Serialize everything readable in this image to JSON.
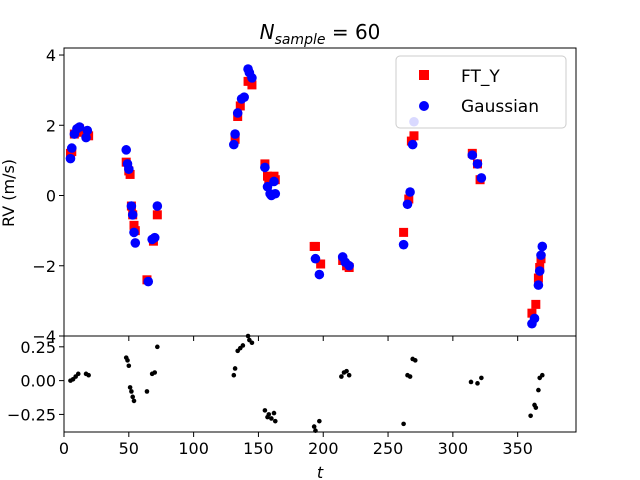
{
  "chart_data": [
    {
      "type": "scatter",
      "title_main": "N",
      "title_sub": "sample",
      "title_rest": " = 60",
      "xlabel": "",
      "ylabel": "RV (m/s)",
      "xlim": [
        0,
        395
      ],
      "ylim": [
        -4,
        4.2
      ],
      "xticks": [
        0,
        50,
        100,
        150,
        200,
        250,
        300,
        350
      ],
      "yticks": [
        -4,
        -2,
        0,
        2,
        4
      ],
      "ytick_labels": [
        "−4",
        "−2",
        "0",
        "2",
        "4"
      ],
      "legend_position": "top-right",
      "series": [
        {
          "name": "FT_Y",
          "marker": "square",
          "color": "#ff0000",
          "points": [
            [
              5,
              1.2
            ],
            [
              6,
              1.25
            ],
            [
              8,
              1.75
            ],
            [
              10,
              1.8
            ],
            [
              12,
              1.9
            ],
            [
              17,
              1.75
            ],
            [
              19,
              1.7
            ],
            [
              48,
              0.95
            ],
            [
              50,
              0.7
            ],
            [
              51,
              0.6
            ],
            [
              52,
              -0.3
            ],
            [
              53,
              -0.55
            ],
            [
              54,
              -0.85
            ],
            [
              55,
              -1.0
            ],
            [
              64,
              -2.4
            ],
            [
              69,
              -1.3
            ],
            [
              72,
              -0.55
            ],
            [
              132,
              1.6
            ],
            [
              134,
              2.25
            ],
            [
              136,
              2.55
            ],
            [
              142,
              3.25
            ],
            [
              145,
              3.15
            ],
            [
              155,
              0.9
            ],
            [
              157,
              0.55
            ],
            [
              158,
              0.45
            ],
            [
              162,
              0.55
            ],
            [
              163,
              0.45
            ],
            [
              193,
              -1.45
            ],
            [
              194,
              -1.45
            ],
            [
              198,
              -1.95
            ],
            [
              215,
              -1.85
            ],
            [
              218,
              -2.0
            ],
            [
              220,
              -2.05
            ],
            [
              262,
              -1.05
            ],
            [
              266,
              -0.1
            ],
            [
              268,
              1.55
            ],
            [
              270,
              1.7
            ],
            [
              315,
              1.2
            ],
            [
              319,
              0.9
            ],
            [
              321,
              0.45
            ],
            [
              361,
              -3.35
            ],
            [
              364,
              -3.1
            ],
            [
              366,
              -2.35
            ],
            [
              367,
              -2.05
            ],
            [
              368,
              -1.8
            ]
          ]
        },
        {
          "name": "Gaussian",
          "marker": "circle",
          "color": "#0000ff",
          "points": [
            [
              5,
              1.05
            ],
            [
              6,
              1.35
            ],
            [
              8,
              1.75
            ],
            [
              10,
              1.9
            ],
            [
              12,
              1.95
            ],
            [
              17,
              1.65
            ],
            [
              18,
              1.85
            ],
            [
              48,
              1.3
            ],
            [
              49,
              0.9
            ],
            [
              50,
              0.75
            ],
            [
              52,
              -0.3
            ],
            [
              53,
              -0.55
            ],
            [
              54,
              -1.05
            ],
            [
              55,
              -1.35
            ],
            [
              65,
              -2.45
            ],
            [
              68,
              -1.25
            ],
            [
              70,
              -1.2
            ],
            [
              72,
              -0.3
            ],
            [
              131,
              1.45
            ],
            [
              132,
              1.75
            ],
            [
              134,
              2.35
            ],
            [
              137,
              2.75
            ],
            [
              139,
              2.8
            ],
            [
              142,
              3.6
            ],
            [
              143,
              3.5
            ],
            [
              145,
              3.35
            ],
            [
              155,
              0.8
            ],
            [
              157,
              0.25
            ],
            [
              159,
              0.05
            ],
            [
              160,
              0.0
            ],
            [
              162,
              0.4
            ],
            [
              163,
              0.05
            ],
            [
              194,
              -1.8
            ],
            [
              197,
              -2.25
            ],
            [
              215,
              -1.75
            ],
            [
              217,
              -1.9
            ],
            [
              220,
              -2.0
            ],
            [
              262,
              -1.4
            ],
            [
              265,
              -0.25
            ],
            [
              267,
              0.1
            ],
            [
              269,
              1.45
            ],
            [
              270,
              2.1
            ],
            [
              315,
              1.15
            ],
            [
              319,
              0.9
            ],
            [
              322,
              0.5
            ],
            [
              361,
              -3.65
            ],
            [
              363,
              -3.5
            ],
            [
              366,
              -2.55
            ],
            [
              367,
              -2.15
            ],
            [
              368,
              -1.7
            ],
            [
              369,
              -1.45
            ]
          ]
        }
      ]
    },
    {
      "type": "scatter",
      "title": "",
      "xlabel": "t",
      "ylabel": "",
      "xlim": [
        0,
        395
      ],
      "ylim": [
        -0.38,
        0.33
      ],
      "xticks": [
        0,
        50,
        100,
        150,
        200,
        250,
        300,
        350
      ],
      "yticks": [
        -0.25,
        0.0,
        0.25
      ],
      "ytick_labels": [
        "−0.25",
        "0.00",
        "0.25"
      ],
      "series": [
        {
          "name": "",
          "marker": "dot",
          "color": "#000000",
          "points": [
            [
              5,
              0.0
            ],
            [
              7,
              0.01
            ],
            [
              9,
              0.03
            ],
            [
              11,
              0.05
            ],
            [
              17,
              0.05
            ],
            [
              19,
              0.04
            ],
            [
              48,
              0.17
            ],
            [
              49,
              0.15
            ],
            [
              50,
              0.11
            ],
            [
              51,
              -0.05
            ],
            [
              52,
              -0.08
            ],
            [
              53,
              -0.12
            ],
            [
              54,
              -0.15
            ],
            [
              64,
              -0.08
            ],
            [
              68,
              0.05
            ],
            [
              70,
              0.06
            ],
            [
              72,
              0.25
            ],
            [
              131,
              0.04
            ],
            [
              132,
              0.09
            ],
            [
              134,
              0.22
            ],
            [
              136,
              0.24
            ],
            [
              138,
              0.26
            ],
            [
              142,
              0.33
            ],
            [
              143,
              0.3
            ],
            [
              145,
              0.28
            ],
            [
              155,
              -0.22
            ],
            [
              157,
              -0.27
            ],
            [
              158,
              -0.25
            ],
            [
              160,
              -0.28
            ],
            [
              162,
              -0.24
            ],
            [
              163,
              -0.3
            ],
            [
              193,
              -0.34
            ],
            [
              194,
              -0.37
            ],
            [
              197,
              -0.3
            ],
            [
              214,
              0.03
            ],
            [
              216,
              0.06
            ],
            [
              218,
              0.07
            ],
            [
              220,
              0.04
            ],
            [
              262,
              -0.32
            ],
            [
              265,
              0.04
            ],
            [
              267,
              0.03
            ],
            [
              269,
              0.16
            ],
            [
              271,
              0.15
            ],
            [
              314,
              -0.01
            ],
            [
              319,
              -0.02
            ],
            [
              322,
              0.02
            ],
            [
              360,
              -0.26
            ],
            [
              363,
              -0.18
            ],
            [
              364,
              -0.2
            ],
            [
              366,
              -0.07
            ],
            [
              367,
              0.02
            ],
            [
              369,
              0.04
            ]
          ]
        }
      ]
    }
  ]
}
